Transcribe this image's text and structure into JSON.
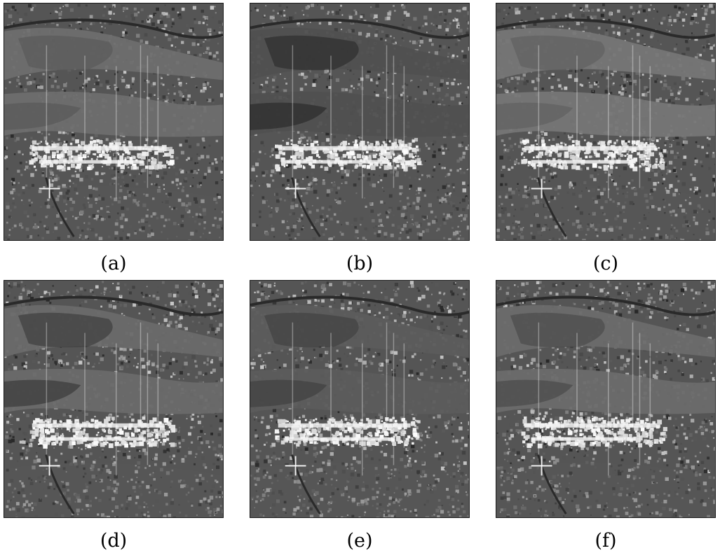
{
  "panels": [
    {
      "caption": "(a)",
      "fields_color": "#6e6e6e",
      "dark_patch_color": "#5a5a5a"
    },
    {
      "caption": "(b)",
      "fields_color": "#505050",
      "dark_patch_color": "#2e2e2e"
    },
    {
      "caption": "(c)",
      "fields_color": "#767676",
      "dark_patch_color": "#616161"
    },
    {
      "caption": "(d)",
      "fields_color": "#6a6a6a",
      "dark_patch_color": "#3e3e3e"
    },
    {
      "caption": "(e)",
      "fields_color": "#5c5c5c",
      "dark_patch_color": "#424242"
    },
    {
      "caption": "(f)",
      "fields_color": "#6c6c6c",
      "dark_patch_color": "#4c4c4c"
    }
  ]
}
